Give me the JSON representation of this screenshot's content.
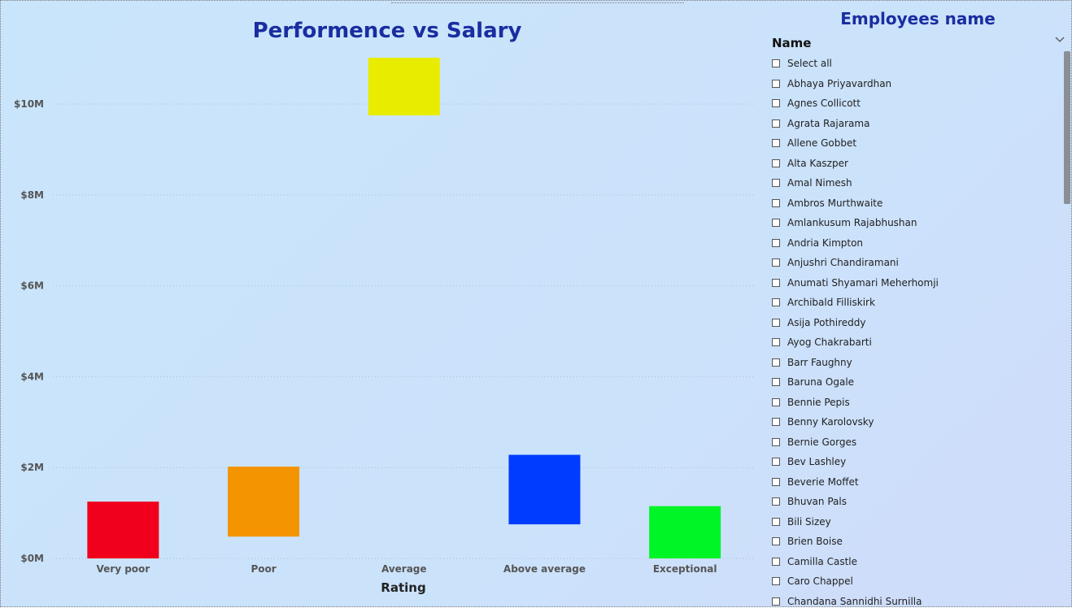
{
  "chart_data": {
    "type": "bar",
    "title": "Performence vs Salary",
    "xlabel": "Rating",
    "ylabel": "",
    "categories": [
      "Very poor",
      "Poor",
      "Average",
      "Above average",
      "Exceptional"
    ],
    "bars": [
      {
        "low": 0,
        "high": 1.25
      },
      {
        "low": 0.48,
        "high": 2.02
      },
      {
        "low": 9.75,
        "high": 11.02
      },
      {
        "low": 0.75,
        "high": 2.28
      },
      {
        "low": 0,
        "high": 1.15
      }
    ],
    "colors": [
      "#f0001c",
      "#f39400",
      "#e8ed00",
      "#003cff",
      "#00f526"
    ],
    "ylim": [
      0,
      11
    ],
    "yticks": [
      0,
      2,
      4,
      6,
      8,
      10
    ],
    "ytick_labels": [
      "$0M",
      "$2M",
      "$4M",
      "$6M",
      "$8M",
      "$10M"
    ],
    "grid": true
  },
  "slicer": {
    "title": "Employees name",
    "header": "Name",
    "items": [
      "Select all",
      "Abhaya Priyavardhan",
      "Agnes Collicott",
      "Agrata Rajarama",
      "Allene Gobbet",
      "Alta Kaszper",
      "Amal Nimesh",
      "Ambros Murthwaite",
      "Amlankusum Rajabhushan",
      "Andria Kimpton",
      "Anjushri Chandiramani",
      "Anumati Shyamari Meherhomji",
      "Archibald Filliskirk",
      "Asija Pothireddy",
      "Ayog Chakrabarti",
      "Barr Faughny",
      "Baruna Ogale",
      "Bennie Pepis",
      "Benny Karolovsky",
      "Bernie Gorges",
      "Bev Lashley",
      "Beverie Moffet",
      "Bhuvan Pals",
      "Bili Sizey",
      "Brien Boise",
      "Camilla Castle",
      "Caro Chappel",
      "Chandana Sannidhi Surnilla"
    ]
  }
}
